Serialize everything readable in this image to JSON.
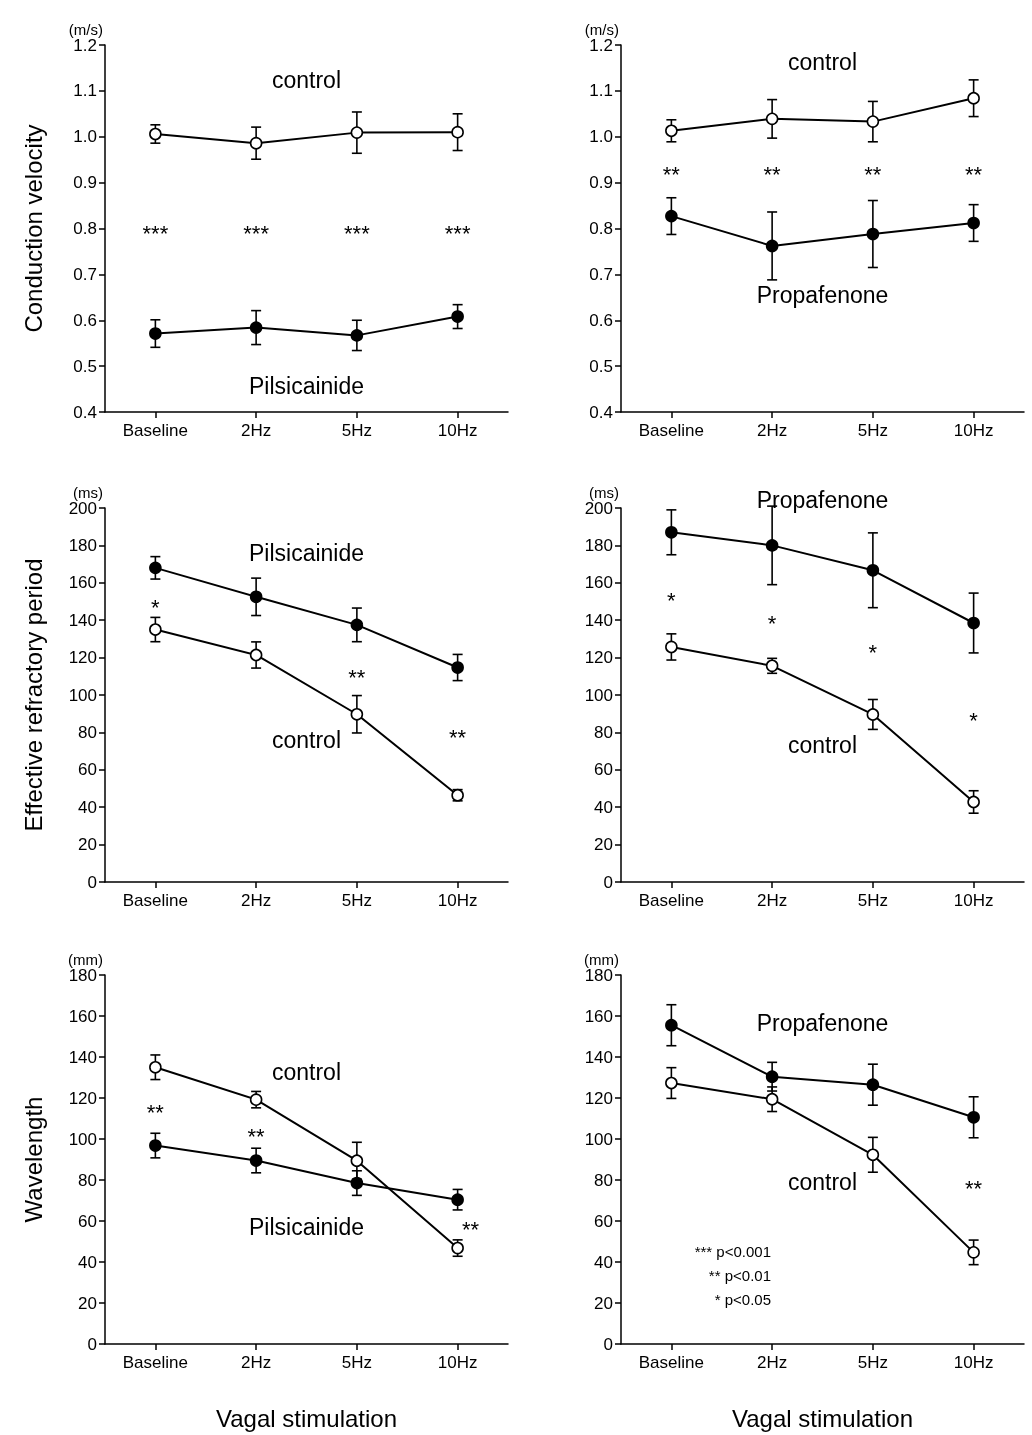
{
  "chart_data": [
    {
      "type": "line",
      "ylabel": "Conduction velocity",
      "categories": [
        "Baseline",
        "2Hz",
        "5Hz",
        "10Hz"
      ],
      "marker": "circle",
      "ylim": [
        0.4,
        1.2
      ],
      "yticks": [
        {
          "value": 0.4,
          "label": "0.4"
        },
        {
          "value": 0.5,
          "label": "0.5"
        },
        {
          "value": 0.6,
          "label": "0.6"
        },
        {
          "value": 0.7,
          "label": "0.7"
        },
        {
          "value": 0.8,
          "label": "0.8"
        },
        {
          "value": 0.9,
          "label": "0.9"
        },
        {
          "value": 1,
          "label": "1.0"
        },
        {
          "value": 1.1,
          "label": "1.1"
        },
        {
          "value": 1.2,
          "label": "1.2"
        }
      ],
      "series": [
        {
          "name": "control",
          "color": "#ffffff",
          "values": [
            1.006,
            0.986,
            1.009,
            1.01
          ],
          "errors": [
            0.02,
            0.035,
            0.045,
            0.04
          ]
        },
        {
          "name": "Pilsicainide",
          "color": "#000000",
          "values": [
            0.571,
            0.584,
            0.567,
            0.608
          ],
          "errors": [
            0.03,
            0.037,
            0.033,
            0.026
          ]
        }
      ],
      "annotations": [
        "(m/s)",
        "***",
        "***",
        "***",
        "***"
      ]
    },
    {
      "type": "line",
      "categories": [
        "Baseline",
        "2Hz",
        "5Hz",
        "10Hz"
      ],
      "marker": "circle",
      "ylim": [
        0.4,
        1.2
      ],
      "yticks": [
        {
          "value": 0.4,
          "label": "0.4"
        },
        {
          "value": 0.5,
          "label": "0.5"
        },
        {
          "value": 0.6,
          "label": "0.6"
        },
        {
          "value": 0.7,
          "label": "0.7"
        },
        {
          "value": 0.8,
          "label": "0.8"
        },
        {
          "value": 0.9,
          "label": "0.9"
        },
        {
          "value": 1,
          "label": "1.0"
        },
        {
          "value": 1.1,
          "label": "1.1"
        },
        {
          "value": 1.2,
          "label": "1.2"
        }
      ],
      "series": [
        {
          "name": "control",
          "color": "#ffffff",
          "values": [
            1.013,
            1.039,
            1.033,
            1.084
          ],
          "errors": [
            0.024,
            0.042,
            0.044,
            0.04
          ]
        },
        {
          "name": "Propafenone",
          "color": "#000000",
          "values": [
            0.827,
            0.762,
            0.788,
            0.812
          ],
          "errors": [
            0.04,
            0.074,
            0.073,
            0.04
          ]
        }
      ],
      "annotations": [
        "(m/s)",
        "**",
        "**",
        "**",
        "**"
      ]
    },
    {
      "type": "line",
      "ylabel": "Effective refractory period",
      "categories": [
        "Baseline",
        "2Hz",
        "5Hz",
        "10Hz"
      ],
      "marker": "circle",
      "ylim": [
        0,
        200
      ],
      "yticks": [
        0,
        20,
        40,
        60,
        80,
        100,
        120,
        140,
        160,
        180,
        200
      ],
      "series": [
        {
          "name": "Pilsicainide",
          "color": "#000000",
          "values": [
            168,
            152.5,
            137.5,
            114.7
          ],
          "errors": [
            6,
            10,
            9,
            7
          ]
        },
        {
          "name": "control",
          "color": "#ffffff",
          "values": [
            135,
            121.4,
            89.7,
            46.4
          ],
          "errors": [
            6.5,
            7,
            10,
            3
          ]
        }
      ],
      "annotations": [
        "(ms)",
        "*",
        "**",
        "**"
      ]
    },
    {
      "type": "line",
      "categories": [
        "Baseline",
        "2Hz",
        "5Hz",
        "10Hz"
      ],
      "marker": "circle",
      "ylim": [
        0,
        200
      ],
      "yticks": [
        0,
        20,
        40,
        60,
        80,
        100,
        120,
        140,
        160,
        180,
        200
      ],
      "series": [
        {
          "name": "Propafenone",
          "color": "#000000",
          "values": [
            187,
            180,
            166.7,
            138.5
          ],
          "errors": [
            12,
            21,
            20,
            16
          ]
        },
        {
          "name": "control",
          "color": "#ffffff",
          "values": [
            125.7,
            115.6,
            89.6,
            42.8
          ],
          "errors": [
            7,
            4,
            8,
            6
          ]
        }
      ],
      "annotations": [
        "(ms)",
        "*",
        "*",
        "*",
        "*"
      ]
    },
    {
      "type": "line",
      "ylabel": "Wavelength",
      "xlabel": "Vagal stimulation",
      "categories": [
        "Baseline",
        "2Hz",
        "5Hz",
        "10Hz"
      ],
      "marker": "circle",
      "ylim": [
        0,
        180
      ],
      "yticks": [
        0,
        20,
        40,
        60,
        80,
        100,
        120,
        140,
        160,
        180
      ],
      "series": [
        {
          "name": "control",
          "color": "#ffffff",
          "values": [
            135,
            119.2,
            89.4,
            46.8
          ],
          "errors": [
            6,
            4,
            9,
            4
          ]
        },
        {
          "name": "Pilsicainide",
          "color": "#000000",
          "values": [
            96.8,
            89.5,
            78.5,
            70.4
          ],
          "errors": [
            6,
            6,
            6,
            5
          ]
        }
      ],
      "annotations": [
        "(mm)",
        "**",
        "**",
        "**"
      ]
    },
    {
      "type": "line",
      "xlabel": "Vagal stimulation",
      "categories": [
        "Baseline",
        "2Hz",
        "5Hz",
        "10Hz"
      ],
      "marker": "circle",
      "ylim": [
        0,
        180
      ],
      "yticks": [
        0,
        20,
        40,
        60,
        80,
        100,
        120,
        140,
        160,
        180
      ],
      "series": [
        {
          "name": "Propafenone",
          "color": "#000000",
          "values": [
            155.5,
            130.4,
            126.5,
            110.6
          ],
          "errors": [
            10,
            7,
            10,
            10
          ]
        },
        {
          "name": "control",
          "color": "#ffffff",
          "values": [
            127.3,
            119.4,
            92.3,
            44.7
          ],
          "errors": [
            7.5,
            6,
            8.5,
            6
          ]
        }
      ],
      "annotations": [
        "(mm)",
        "**",
        "*** p<0.001",
        "** p<0.01",
        "* p<0.05"
      ]
    }
  ]
}
